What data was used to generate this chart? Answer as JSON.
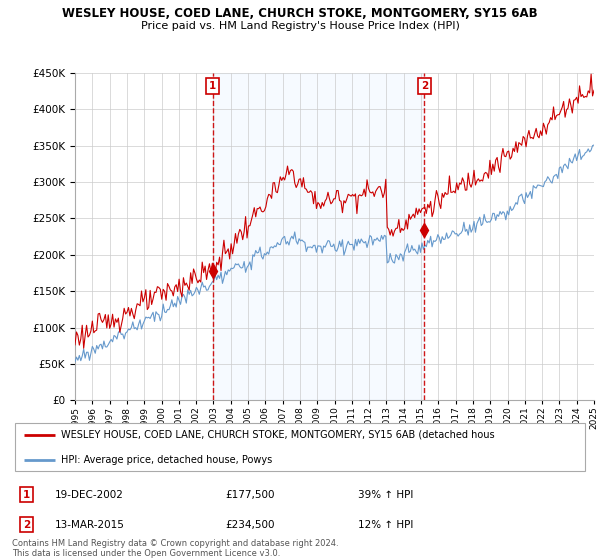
{
  "title": "WESLEY HOUSE, COED LANE, CHURCH STOKE, MONTGOMERY, SY15 6AB",
  "subtitle": "Price paid vs. HM Land Registry's House Price Index (HPI)",
  "legend_line1": "WESLEY HOUSE, COED LANE, CHURCH STOKE, MONTGOMERY, SY15 6AB (detached hous",
  "legend_line2": "HPI: Average price, detached house, Powys",
  "table_row1": [
    "1",
    "19-DEC-2002",
    "£177,500",
    "39% ↑ HPI"
  ],
  "table_row2": [
    "2",
    "13-MAR-2015",
    "£234,500",
    "12% ↑ HPI"
  ],
  "footnote": "Contains HM Land Registry data © Crown copyright and database right 2024.\nThis data is licensed under the Open Government Licence v3.0.",
  "red_color": "#cc0000",
  "blue_color": "#6699cc",
  "shade_color": "#ddeeff",
  "vline_color": "#cc0000",
  "ylim": [
    0,
    450000
  ],
  "yticks": [
    0,
    50000,
    100000,
    150000,
    200000,
    250000,
    300000,
    350000,
    400000,
    450000
  ],
  "sale1_date": 2002.96,
  "sale1_price": 177500,
  "sale2_date": 2015.2,
  "sale2_price": 234500,
  "xmin": 1995,
  "xmax": 2025
}
